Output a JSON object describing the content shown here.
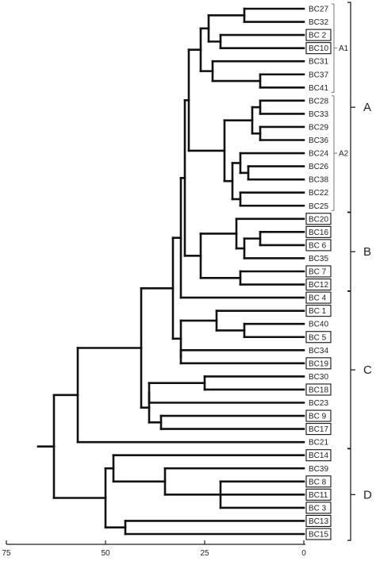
{
  "axis": {
    "ticks": [
      "75",
      "50",
      "25",
      "0"
    ]
  },
  "leaves": [
    {
      "label": "BC27",
      "boxed": false
    },
    {
      "label": "BC32",
      "boxed": false
    },
    {
      "label": "BC 2",
      "boxed": true
    },
    {
      "label": "BC10",
      "boxed": true
    },
    {
      "label": "BC31",
      "boxed": false
    },
    {
      "label": "BC37",
      "boxed": false
    },
    {
      "label": "BC41",
      "boxed": false
    },
    {
      "label": "BC28",
      "boxed": false
    },
    {
      "label": "BC33",
      "boxed": false
    },
    {
      "label": "BC29",
      "boxed": false
    },
    {
      "label": "BC36",
      "boxed": false
    },
    {
      "label": "BC24",
      "boxed": false
    },
    {
      "label": "BC26",
      "boxed": false
    },
    {
      "label": "BC38",
      "boxed": false
    },
    {
      "label": "BC22",
      "boxed": false
    },
    {
      "label": "BC25",
      "boxed": false
    },
    {
      "label": "BC20",
      "boxed": true
    },
    {
      "label": "BC16",
      "boxed": true
    },
    {
      "label": "BC 6",
      "boxed": true
    },
    {
      "label": "BC35",
      "boxed": false
    },
    {
      "label": "BC 7",
      "boxed": true
    },
    {
      "label": "BC12",
      "boxed": true
    },
    {
      "label": "BC 4",
      "boxed": true
    },
    {
      "label": "BC 1",
      "boxed": true
    },
    {
      "label": "BC40",
      "boxed": false
    },
    {
      "label": "BC 5",
      "boxed": true
    },
    {
      "label": "BC34",
      "boxed": false
    },
    {
      "label": "BC19",
      "boxed": true
    },
    {
      "label": "BC30",
      "boxed": false
    },
    {
      "label": "BC18",
      "boxed": true
    },
    {
      "label": "BC23",
      "boxed": false
    },
    {
      "label": "BC 9",
      "boxed": true
    },
    {
      "label": "BC17",
      "boxed": true
    },
    {
      "label": "BC21",
      "boxed": false
    },
    {
      "label": "BC14",
      "boxed": true
    },
    {
      "label": "BC39",
      "boxed": false
    },
    {
      "label": "BC 8",
      "boxed": true
    },
    {
      "label": "BC11",
      "boxed": true
    },
    {
      "label": "BC 3",
      "boxed": true
    },
    {
      "label": "BC13",
      "boxed": true
    },
    {
      "label": "BC15",
      "boxed": true
    }
  ],
  "groups": [
    {
      "label": "A",
      "from": 0,
      "to": 15
    },
    {
      "label": "B",
      "from": 16,
      "to": 21
    },
    {
      "label": "C",
      "from": 22,
      "to": 33
    },
    {
      "label": "D",
      "from": 34,
      "to": 40
    }
  ],
  "subgroups": [
    {
      "label": "A1",
      "from": 0,
      "to": 6
    },
    {
      "label": "A2",
      "from": 7,
      "to": 15
    }
  ],
  "tree": {
    "h": 63,
    "c": [
      {
        "h": 57,
        "c": [
          {
            "h": 41,
            "c": [
              {
                "h": 33,
                "c": [
                  {
                    "h": 31,
                    "c": [
                      {
                        "h": 30,
                        "c": [
                          {
                            "h": 29,
                            "c": [
                              {
                                "h": 26,
                                "c": [
                                  {
                                    "h": 24,
                                    "c": [
                                      {
                                        "h": 15,
                                        "c": [
                                          0,
                                          1
                                        ]
                                      },
                                      {
                                        "h": 21,
                                        "c": [
                                          2,
                                          3
                                        ]
                                      }
                                    ]
                                  },
                                  {
                                    "h": 23,
                                    "c": [
                                      4,
                                      {
                                        "h": 11,
                                        "c": [
                                          5,
                                          6
                                        ]
                                      }
                                    ]
                                  }
                                ]
                              },
                              {
                                "h": 20,
                                "c": [
                                  {
                                    "h": 13,
                                    "c": [
                                      {
                                        "h": 11,
                                        "c": [
                                          7,
                                          8
                                        ]
                                      },
                                      {
                                        "h": 11,
                                        "c": [
                                          9,
                                          10
                                        ]
                                      }
                                    ]
                                  },
                                  {
                                    "h": 18,
                                    "c": [
                                      {
                                        "h": 16,
                                        "c": [
                                          11,
                                          {
                                            "h": 14,
                                            "c": [
                                              12,
                                              13
                                            ]
                                          }
                                        ]
                                      },
                                      {
                                        "h": 16,
                                        "c": [
                                          14,
                                          15
                                        ]
                                      }
                                    ]
                                  }
                                ]
                              }
                            ]
                          },
                          {
                            "h": 26,
                            "c": [
                              {
                                "h": 17,
                                "c": [
                                  16,
                                  {
                                    "h": 15,
                                    "c": [
                                      {
                                        "h": 11,
                                        "c": [
                                          17,
                                          18
                                        ]
                                      },
                                      19
                                    ]
                                  }
                                ]
                              },
                              {
                                "h": 16,
                                "c": [
                                  20,
                                  21
                                ]
                              }
                            ]
                          }
                        ]
                      },
                      22
                    ]
                  },
                  {
                    "h": 31,
                    "c": [
                      {
                        "h": 22,
                        "c": [
                          23,
                          {
                            "h": 15,
                            "c": [
                              24,
                              25
                            ]
                          }
                        ]
                      },
                      {
                        "h": 31,
                        "c": [
                          26,
                          27
                        ]
                      }
                    ]
                  }
                ]
              },
              {
                "h": 39,
                "c": [
                  {
                    "h": 39,
                    "c": [
                      {
                        "h": 25,
                        "c": [
                          28,
                          29
                        ]
                      },
                      30
                    ]
                  },
                  {
                    "h": 36,
                    "c": [
                      31,
                      32
                    ]
                  }
                ]
              }
            ]
          },
          33
        ]
      },
      {
        "h": 50,
        "c": [
          {
            "h": 48,
            "c": [
              34,
              {
                "h": 35,
                "c": [
                  35,
                  {
                    "h": 21,
                    "c": [
                      36,
                      37,
                      38
                    ]
                  }
                ]
              }
            ]
          },
          {
            "h": 45,
            "c": [
              39,
              40
            ]
          }
        ]
      }
    ]
  }
}
